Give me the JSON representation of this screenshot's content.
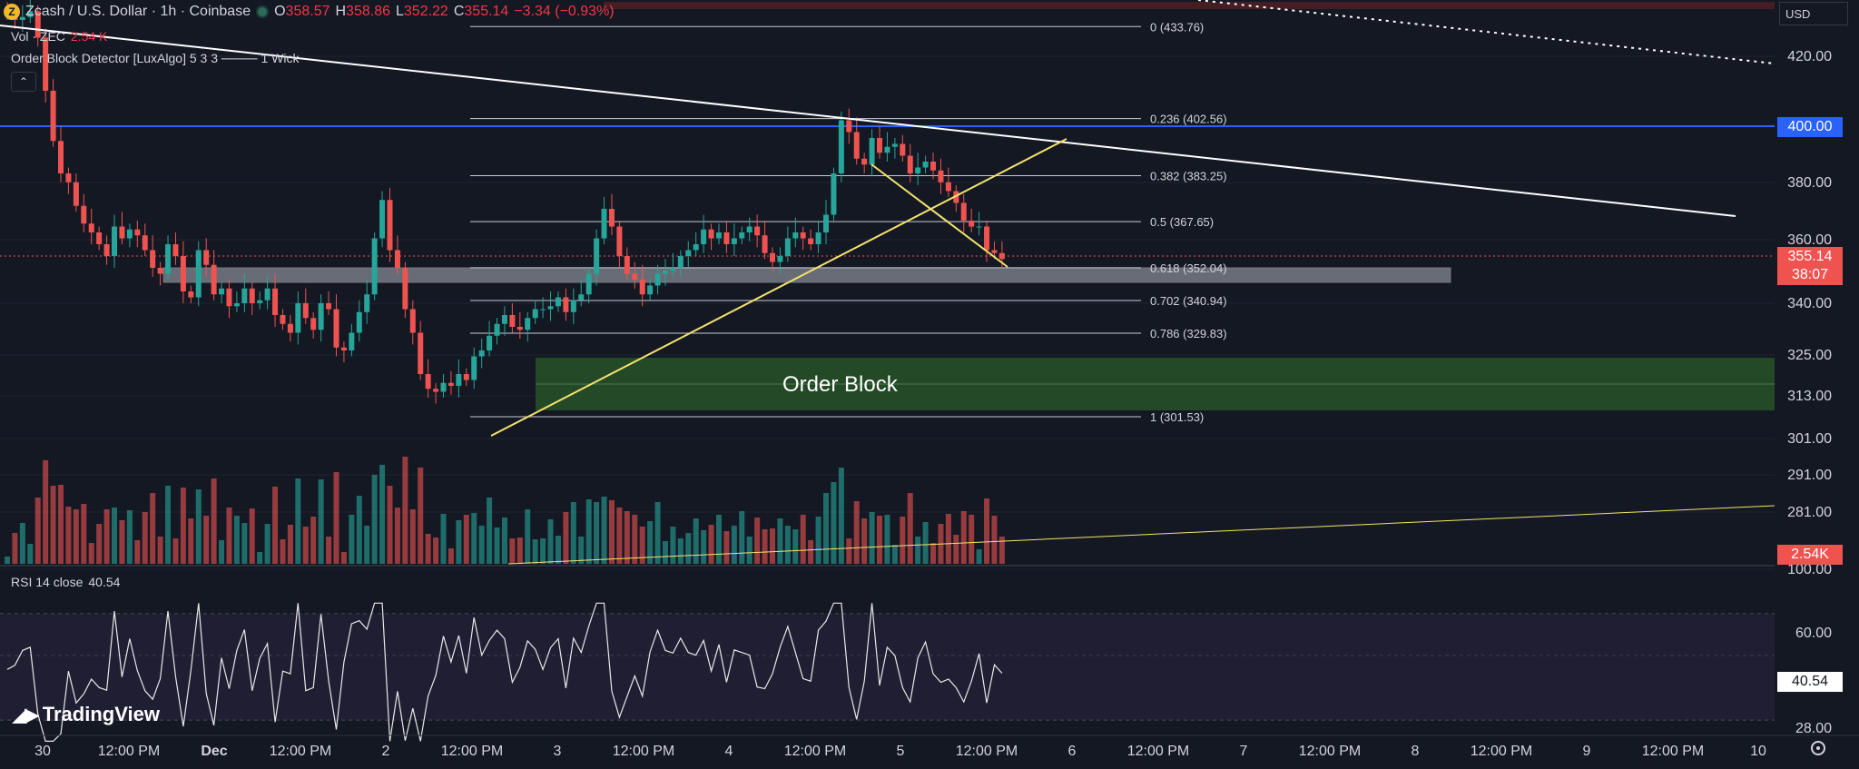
{
  "header": {
    "symbol": "Zcash / U.S. Dollar · 1h · Coinbase",
    "ohlc": [
      {
        "k": "O",
        "v": "358.57"
      },
      {
        "k": "H",
        "v": "358.86"
      },
      {
        "k": "L",
        "v": "352.22"
      },
      {
        "k": "C",
        "v": "355.14"
      }
    ],
    "change": "−3.34 (−0.93%)",
    "vol_label": "Vol · ZEC",
    "vol_value": "2.54 K",
    "indicator": "Order Block Detector [LuxAlgo] 5 3 3 ──── 1 Wick",
    "collapse_icon": "chevron-up-icon",
    "rsi_label": "RSI 14 close",
    "rsi_value": "40.54",
    "currency": "USD"
  },
  "colors": {
    "up": "#26a69a",
    "down": "#ef5350",
    "blue_line": "#2962ff",
    "yellow": "#f4e36b",
    "ob_fill": "#2a5a2a",
    "background": "#141823"
  },
  "price_tags": {
    "blue": "400.00",
    "last_price": "355.14",
    "countdown": "38:07",
    "volume": "2.54K",
    "rsi": "40.54"
  },
  "logo_text": "TradingView",
  "chart_data": {
    "type": "candlestick",
    "price_axis_ticks": [
      "420.00",
      "400.00",
      "380.00",
      "360.00",
      "340.00",
      "325.00",
      "313.00",
      "301.00",
      "291.00",
      "281.00",
      "100.00"
    ],
    "rsi_axis_ticks": [
      "60.00",
      "28.00"
    ],
    "time_axis_ticks": [
      "30",
      "12:00 PM",
      "Dec",
      "12:00 PM",
      "2",
      "12:00 PM",
      "3",
      "12:00 PM",
      "4",
      "12:00 PM",
      "5",
      "12:00 PM",
      "6",
      "12:00 PM",
      "7",
      "12:00 PM",
      "8",
      "12:00 PM",
      "9",
      "12:00 PM",
      "10"
    ],
    "fib_levels": [
      {
        "ratio": "0",
        "price": 433.76,
        "label": "0 (433.76)"
      },
      {
        "ratio": "0.236",
        "price": 402.56,
        "label": "0.236 (402.56)"
      },
      {
        "ratio": "0.382",
        "price": 383.25,
        "label": "0.382 (383.25)"
      },
      {
        "ratio": "0.5",
        "price": 367.65,
        "label": "0.5 (367.65)"
      },
      {
        "ratio": "0.618",
        "price": 352.04,
        "label": "0.618 (352.04)"
      },
      {
        "ratio": "0.702",
        "price": 340.94,
        "label": "0.702 (340.94)"
      },
      {
        "ratio": "0.786",
        "price": 329.83,
        "label": "0.786 (329.83)"
      },
      {
        "ratio": "1",
        "price": 301.53,
        "label": "1 (301.53)"
      }
    ],
    "order_block": {
      "label": "Order Block",
      "top": 324,
      "bottom": 308
    },
    "horizontal_line": 400.0,
    "closes": [
      438,
      436,
      437,
      439,
      430,
      412,
      395,
      384,
      381,
      373,
      367,
      364,
      360,
      356,
      366,
      362,
      365,
      363,
      358,
      352,
      350,
      360,
      356,
      344,
      342,
      358,
      353,
      343,
      345,
      339,
      340,
      345,
      340,
      341,
      345,
      336,
      333,
      330,
      340,
      335,
      331,
      340,
      338,
      325,
      324,
      330,
      337,
      343,
      362,
      375,
      358,
      352,
      338,
      330,
      316,
      311,
      310,
      313,
      312,
      316,
      314,
      322,
      324,
      329,
      333,
      336,
      332,
      331,
      335,
      338,
      338,
      339,
      342,
      337,
      341,
      343,
      350,
      362,
      372,
      366,
      356,
      350,
      348,
      343,
      346,
      350,
      351,
      352,
      356,
      358,
      360,
      365,
      362,
      364,
      360,
      362,
      364,
      366,
      363,
      357,
      354,
      356,
      362,
      364,
      362,
      360,
      364,
      370,
      384,
      402,
      398,
      389,
      387,
      396,
      391,
      393,
      394,
      390,
      384,
      386,
      388,
      385,
      381,
      378,
      374,
      368,
      366,
      366,
      358,
      357,
      355
    ]
  }
}
